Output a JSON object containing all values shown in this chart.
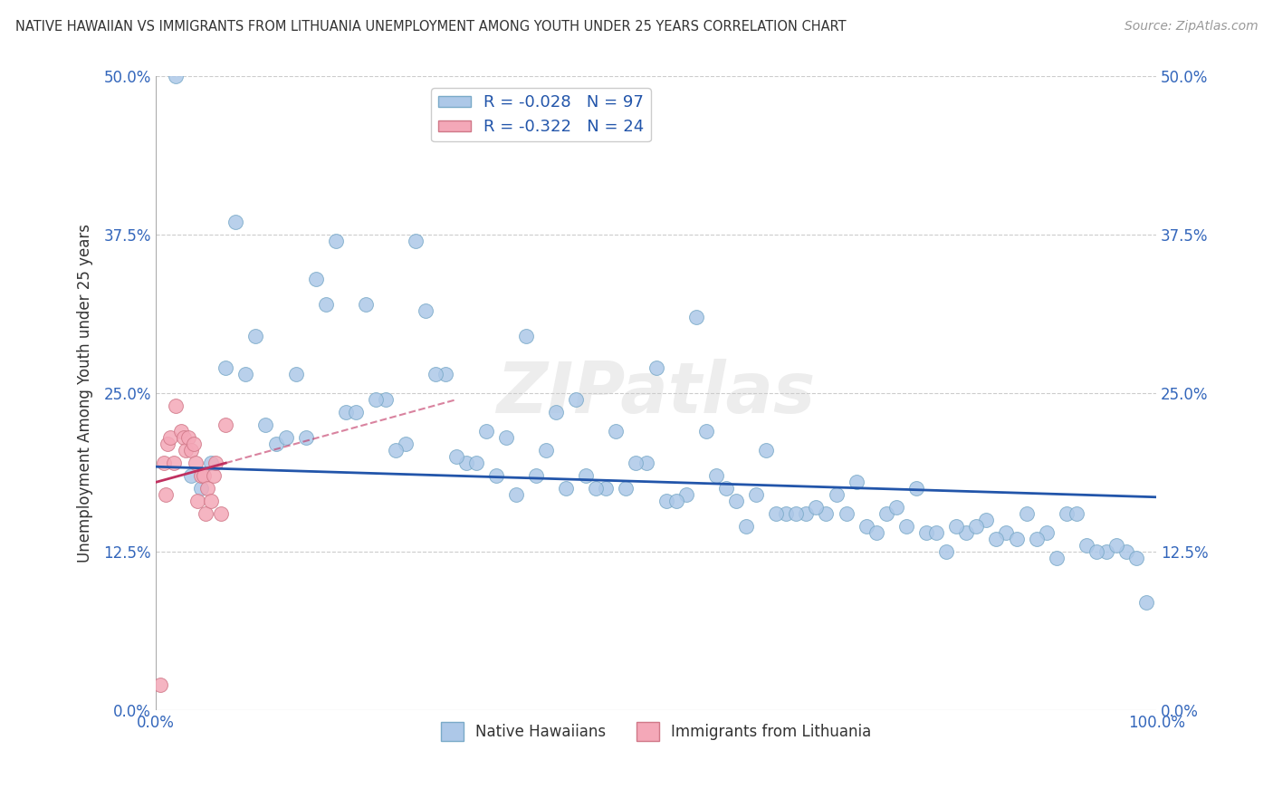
{
  "title": "NATIVE HAWAIIAN VS IMMIGRANTS FROM LITHUANIA UNEMPLOYMENT AMONG YOUTH UNDER 25 YEARS CORRELATION CHART",
  "source": "Source: ZipAtlas.com",
  "ylabel": "Unemployment Among Youth under 25 years",
  "xlabel": "",
  "xlim": [
    0,
    1.0
  ],
  "ylim": [
    0,
    0.5
  ],
  "yticks": [
    0.0,
    0.125,
    0.25,
    0.375,
    0.5
  ],
  "ytick_labels": [
    "0.0%",
    "12.5%",
    "25.0%",
    "37.5%",
    "50.0%"
  ],
  "xticks": [
    0.0,
    0.25,
    0.5,
    0.75,
    1.0
  ],
  "xtick_labels": [
    "0.0%",
    "",
    "",
    "",
    "100.0%"
  ],
  "blue_R": -0.028,
  "blue_N": 97,
  "pink_R": -0.322,
  "pink_N": 24,
  "blue_label": "Native Hawaiians",
  "pink_label": "Immigrants from Lithuania",
  "blue_color": "#adc8e8",
  "blue_edge": "#7aaac8",
  "pink_color": "#f4a8b8",
  "pink_edge": "#d07888",
  "blue_line_color": "#2255aa",
  "pink_line_color": "#c03060",
  "background_color": "#ffffff",
  "grid_color": "#cccccc",
  "blue_scatter_x": [
    0.02,
    0.08,
    0.18,
    0.26,
    0.27,
    0.1,
    0.12,
    0.14,
    0.16,
    0.19,
    0.21,
    0.23,
    0.25,
    0.29,
    0.31,
    0.33,
    0.35,
    0.37,
    0.39,
    0.41,
    0.43,
    0.45,
    0.47,
    0.49,
    0.51,
    0.53,
    0.55,
    0.57,
    0.59,
    0.61,
    0.63,
    0.65,
    0.67,
    0.69,
    0.71,
    0.73,
    0.75,
    0.77,
    0.79,
    0.81,
    0.83,
    0.85,
    0.87,
    0.89,
    0.91,
    0.93,
    0.95,
    0.97,
    0.99,
    0.11,
    0.13,
    0.15,
    0.17,
    0.2,
    0.22,
    0.24,
    0.28,
    0.3,
    0.32,
    0.34,
    0.36,
    0.38,
    0.4,
    0.42,
    0.44,
    0.46,
    0.48,
    0.5,
    0.52,
    0.54,
    0.56,
    0.58,
    0.6,
    0.62,
    0.64,
    0.66,
    0.68,
    0.7,
    0.72,
    0.74,
    0.76,
    0.78,
    0.8,
    0.82,
    0.84,
    0.86,
    0.88,
    0.9,
    0.92,
    0.94,
    0.96,
    0.98,
    0.09,
    0.07,
    0.055,
    0.045,
    0.035
  ],
  "blue_scatter_y": [
    0.5,
    0.385,
    0.37,
    0.37,
    0.315,
    0.295,
    0.21,
    0.265,
    0.34,
    0.235,
    0.32,
    0.245,
    0.21,
    0.265,
    0.195,
    0.22,
    0.215,
    0.295,
    0.205,
    0.175,
    0.185,
    0.175,
    0.175,
    0.195,
    0.165,
    0.17,
    0.22,
    0.175,
    0.145,
    0.205,
    0.155,
    0.155,
    0.155,
    0.155,
    0.145,
    0.155,
    0.145,
    0.14,
    0.125,
    0.14,
    0.15,
    0.14,
    0.155,
    0.14,
    0.155,
    0.13,
    0.125,
    0.125,
    0.085,
    0.225,
    0.215,
    0.215,
    0.32,
    0.235,
    0.245,
    0.205,
    0.265,
    0.2,
    0.195,
    0.185,
    0.17,
    0.185,
    0.235,
    0.245,
    0.175,
    0.22,
    0.195,
    0.27,
    0.165,
    0.31,
    0.185,
    0.165,
    0.17,
    0.155,
    0.155,
    0.16,
    0.17,
    0.18,
    0.14,
    0.16,
    0.175,
    0.14,
    0.145,
    0.145,
    0.135,
    0.135,
    0.135,
    0.12,
    0.155,
    0.125,
    0.13,
    0.12,
    0.265,
    0.27,
    0.195,
    0.175,
    0.185
  ],
  "pink_scatter_x": [
    0.005,
    0.008,
    0.01,
    0.012,
    0.015,
    0.018,
    0.02,
    0.025,
    0.028,
    0.03,
    0.033,
    0.035,
    0.038,
    0.04,
    0.042,
    0.045,
    0.048,
    0.05,
    0.052,
    0.055,
    0.058,
    0.06,
    0.065,
    0.07
  ],
  "pink_scatter_y": [
    0.02,
    0.195,
    0.17,
    0.21,
    0.215,
    0.195,
    0.24,
    0.22,
    0.215,
    0.205,
    0.215,
    0.205,
    0.21,
    0.195,
    0.165,
    0.185,
    0.185,
    0.155,
    0.175,
    0.165,
    0.185,
    0.195,
    0.155,
    0.225
  ],
  "watermark": "ZIPatlas"
}
